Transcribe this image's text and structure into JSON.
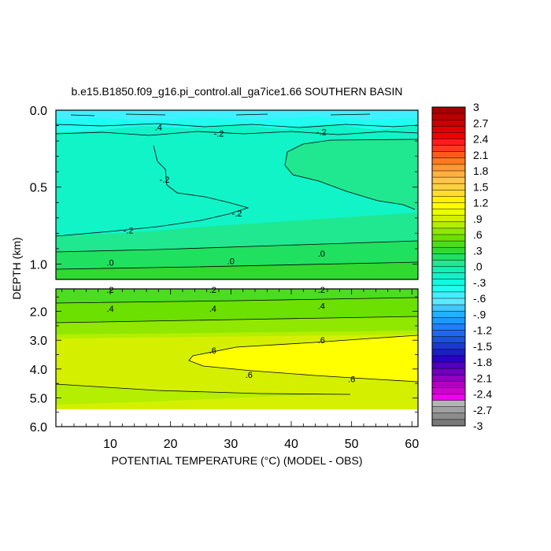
{
  "chart_data": {
    "type": "heatmap",
    "title": "b.e15.B1850.f09_g16.pi_control.all_ga7ice1.66 SOUTHERN BASIN",
    "xlabel": "POTENTIAL TEMPERATURE (°C) (MODEL - OBS)",
    "ylabel": "DEPTH (km)",
    "xlim": [
      1,
      61
    ],
    "x_ticks": [
      "10",
      "20",
      "30",
      "40",
      "50",
      "60"
    ],
    "upper_panel": {
      "ylim": [
        0.0,
        1.1
      ],
      "y_ticks": [
        "0.0",
        "0.5",
        "1.0"
      ],
      "contour_labels": [
        {
          "text": ".4",
          "x": 18,
          "depth": 0.11
        },
        {
          "text": "-.2",
          "x": 28,
          "depth": 0.15
        },
        {
          "text": "-.2",
          "x": 45,
          "depth": 0.14
        },
        {
          "text": "-.2",
          "x": 19,
          "depth": 0.45
        },
        {
          "text": "-.2",
          "x": 31,
          "depth": 0.67
        },
        {
          "text": "-.2",
          "x": 13,
          "depth": 0.78
        },
        {
          "text": ".0",
          "x": 10,
          "depth": 0.99
        },
        {
          "text": ".0",
          "x": 30,
          "depth": 0.98
        },
        {
          "text": ".0",
          "x": 45,
          "depth": 0.93
        }
      ]
    },
    "lower_panel": {
      "ylim": [
        1.0,
        6.0
      ],
      "y_ticks": [
        "2.0",
        "3.0",
        "4.0",
        "5.0",
        "6.0"
      ],
      "contour_labels": [
        {
          "text": ".2",
          "x": 10,
          "depth": 1.25
        },
        {
          "text": ".2",
          "x": 27,
          "depth": 1.25
        },
        {
          "text": ".2",
          "x": 45,
          "depth": 1.25
        },
        {
          "text": ".4",
          "x": 10,
          "depth": 1.9
        },
        {
          "text": ".4",
          "x": 27,
          "depth": 1.9
        },
        {
          "text": ".4",
          "x": 45,
          "depth": 1.8
        },
        {
          "text": ".6",
          "x": 27,
          "depth": 3.35
        },
        {
          "text": ".6",
          "x": 45,
          "depth": 3.0
        },
        {
          "text": ".6",
          "x": 33,
          "depth": 4.2
        },
        {
          "text": ".6",
          "x": 50,
          "depth": 4.35
        }
      ]
    },
    "colorbar": {
      "labels": [
        "3",
        "2.7",
        "2.4",
        "2.1",
        "1.8",
        "1.5",
        "1.2",
        ".9",
        ".6",
        ".3",
        ".0",
        "-.3",
        "-.6",
        "-.9",
        "-1.2",
        "-1.5",
        "-1.8",
        "-2.1",
        "-2.4",
        "-2.7",
        "-3"
      ],
      "colors": [
        "#a40000",
        "#b80000",
        "#cc0000",
        "#e00000",
        "#f20000",
        "#ff1c1c",
        "#ff3a1c",
        "#ff5a1c",
        "#ff7a1c",
        "#ff9a30",
        "#ffb040",
        "#ffc454",
        "#ffd040",
        "#ffdc30",
        "#fff000",
        "#ffff00",
        "#eaff00",
        "#d4f000",
        "#b4ee00",
        "#90e800",
        "#6ce000",
        "#4cdc20",
        "#30d830",
        "#20e060",
        "#20e890",
        "#10f0b0",
        "#10f4c8",
        "#10f8e0",
        "#20fcf0",
        "#40f0ff",
        "#60e8ff",
        "#40c8ff",
        "#20b0ff",
        "#1c98ff",
        "#1c80ff",
        "#1c68f0",
        "#1c50e0",
        "#1c38d0",
        "#1c20c0",
        "#2c00c0",
        "#5000c0",
        "#7000c0",
        "#9000c0",
        "#b000c0",
        "#d000d0",
        "#f000f0",
        "#b4b4b4",
        "#a0a0a0",
        "#8c8c8c",
        "#787878"
      ]
    }
  }
}
